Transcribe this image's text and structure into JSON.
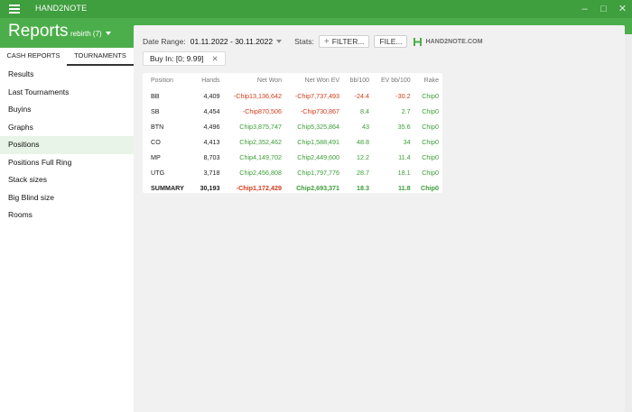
{
  "app": {
    "name": "HAND2NOTE",
    "window_controls": [
      "–",
      "□",
      "✕"
    ]
  },
  "header": {
    "title": "Reports",
    "user": "rebirth (7)"
  },
  "tabs": [
    {
      "label": "CASH REPORTS",
      "active": false
    },
    {
      "label": "TOURNAMENTS",
      "active": true
    }
  ],
  "sidebar": {
    "items": [
      {
        "label": "Results"
      },
      {
        "label": "Last Tournaments"
      },
      {
        "label": "Buyins"
      },
      {
        "label": "Graphs"
      },
      {
        "label": "Positions",
        "active": true
      },
      {
        "label": "Positions Full Ring"
      },
      {
        "label": "Stack sizes"
      },
      {
        "label": "Big Blind size"
      },
      {
        "label": "Rooms"
      }
    ]
  },
  "filters": {
    "date_label": "Date Range:",
    "date_value": "01.11.2022 - 30.11.2022",
    "stats_label": "Stats:",
    "filter_button": "FILTER...",
    "file_button": "FILE...",
    "logo_text": "HAND2NOTE.COM",
    "chip": "Buy In: [0; 9.99]"
  },
  "table": {
    "columns": [
      "Position",
      "Hands",
      "Net Won",
      "Net Won  EV",
      "bb/100",
      "EV bb/100",
      "Rake"
    ],
    "rows": [
      {
        "position": "BB",
        "hands": "4,409",
        "net_won": "-Chip13,136,642",
        "net_won_ev": "-Chip7,737,493",
        "bb100": "-24.4",
        "ev_bb100": "-30.2",
        "rake": "Chip0"
      },
      {
        "position": "SB",
        "hands": "4,454",
        "net_won": "-Chip870,506",
        "net_won_ev": "-Chip730,867",
        "bb100": "8.4",
        "ev_bb100": "2.7",
        "rake": "Chip0"
      },
      {
        "position": "BTN",
        "hands": "4,496",
        "net_won": "Chip3,875,747",
        "net_won_ev": "Chip5,325,864",
        "bb100": "43",
        "ev_bb100": "35.6",
        "rake": "Chip0"
      },
      {
        "position": "CO",
        "hands": "4,413",
        "net_won": "Chip2,352,462",
        "net_won_ev": "Chip1,588,491",
        "bb100": "48.8",
        "ev_bb100": "34",
        "rake": "Chip0"
      },
      {
        "position": "MP",
        "hands": "8,703",
        "net_won": "Chip4,149,702",
        "net_won_ev": "Chip2,449,600",
        "bb100": "12.2",
        "ev_bb100": "11.4",
        "rake": "Chip0"
      },
      {
        "position": "UTG",
        "hands": "3,718",
        "net_won": "Chip2,456,808",
        "net_won_ev": "Chip1,797,776",
        "bb100": "28.7",
        "ev_bb100": "18.1",
        "rake": "Chip0"
      }
    ],
    "summary": {
      "position": "SUMMARY",
      "hands": "30,193",
      "net_won": "-Chip1,172,429",
      "net_won_ev": "Chip2,693,371",
      "bb100": "18.3",
      "ev_bb100": "11.8",
      "rake": "Chip0"
    }
  },
  "colors": {
    "green_dark": "#3f9e3e",
    "green": "#4cae4a",
    "negative": "#d33a1c",
    "positive": "#3a9e36"
  }
}
